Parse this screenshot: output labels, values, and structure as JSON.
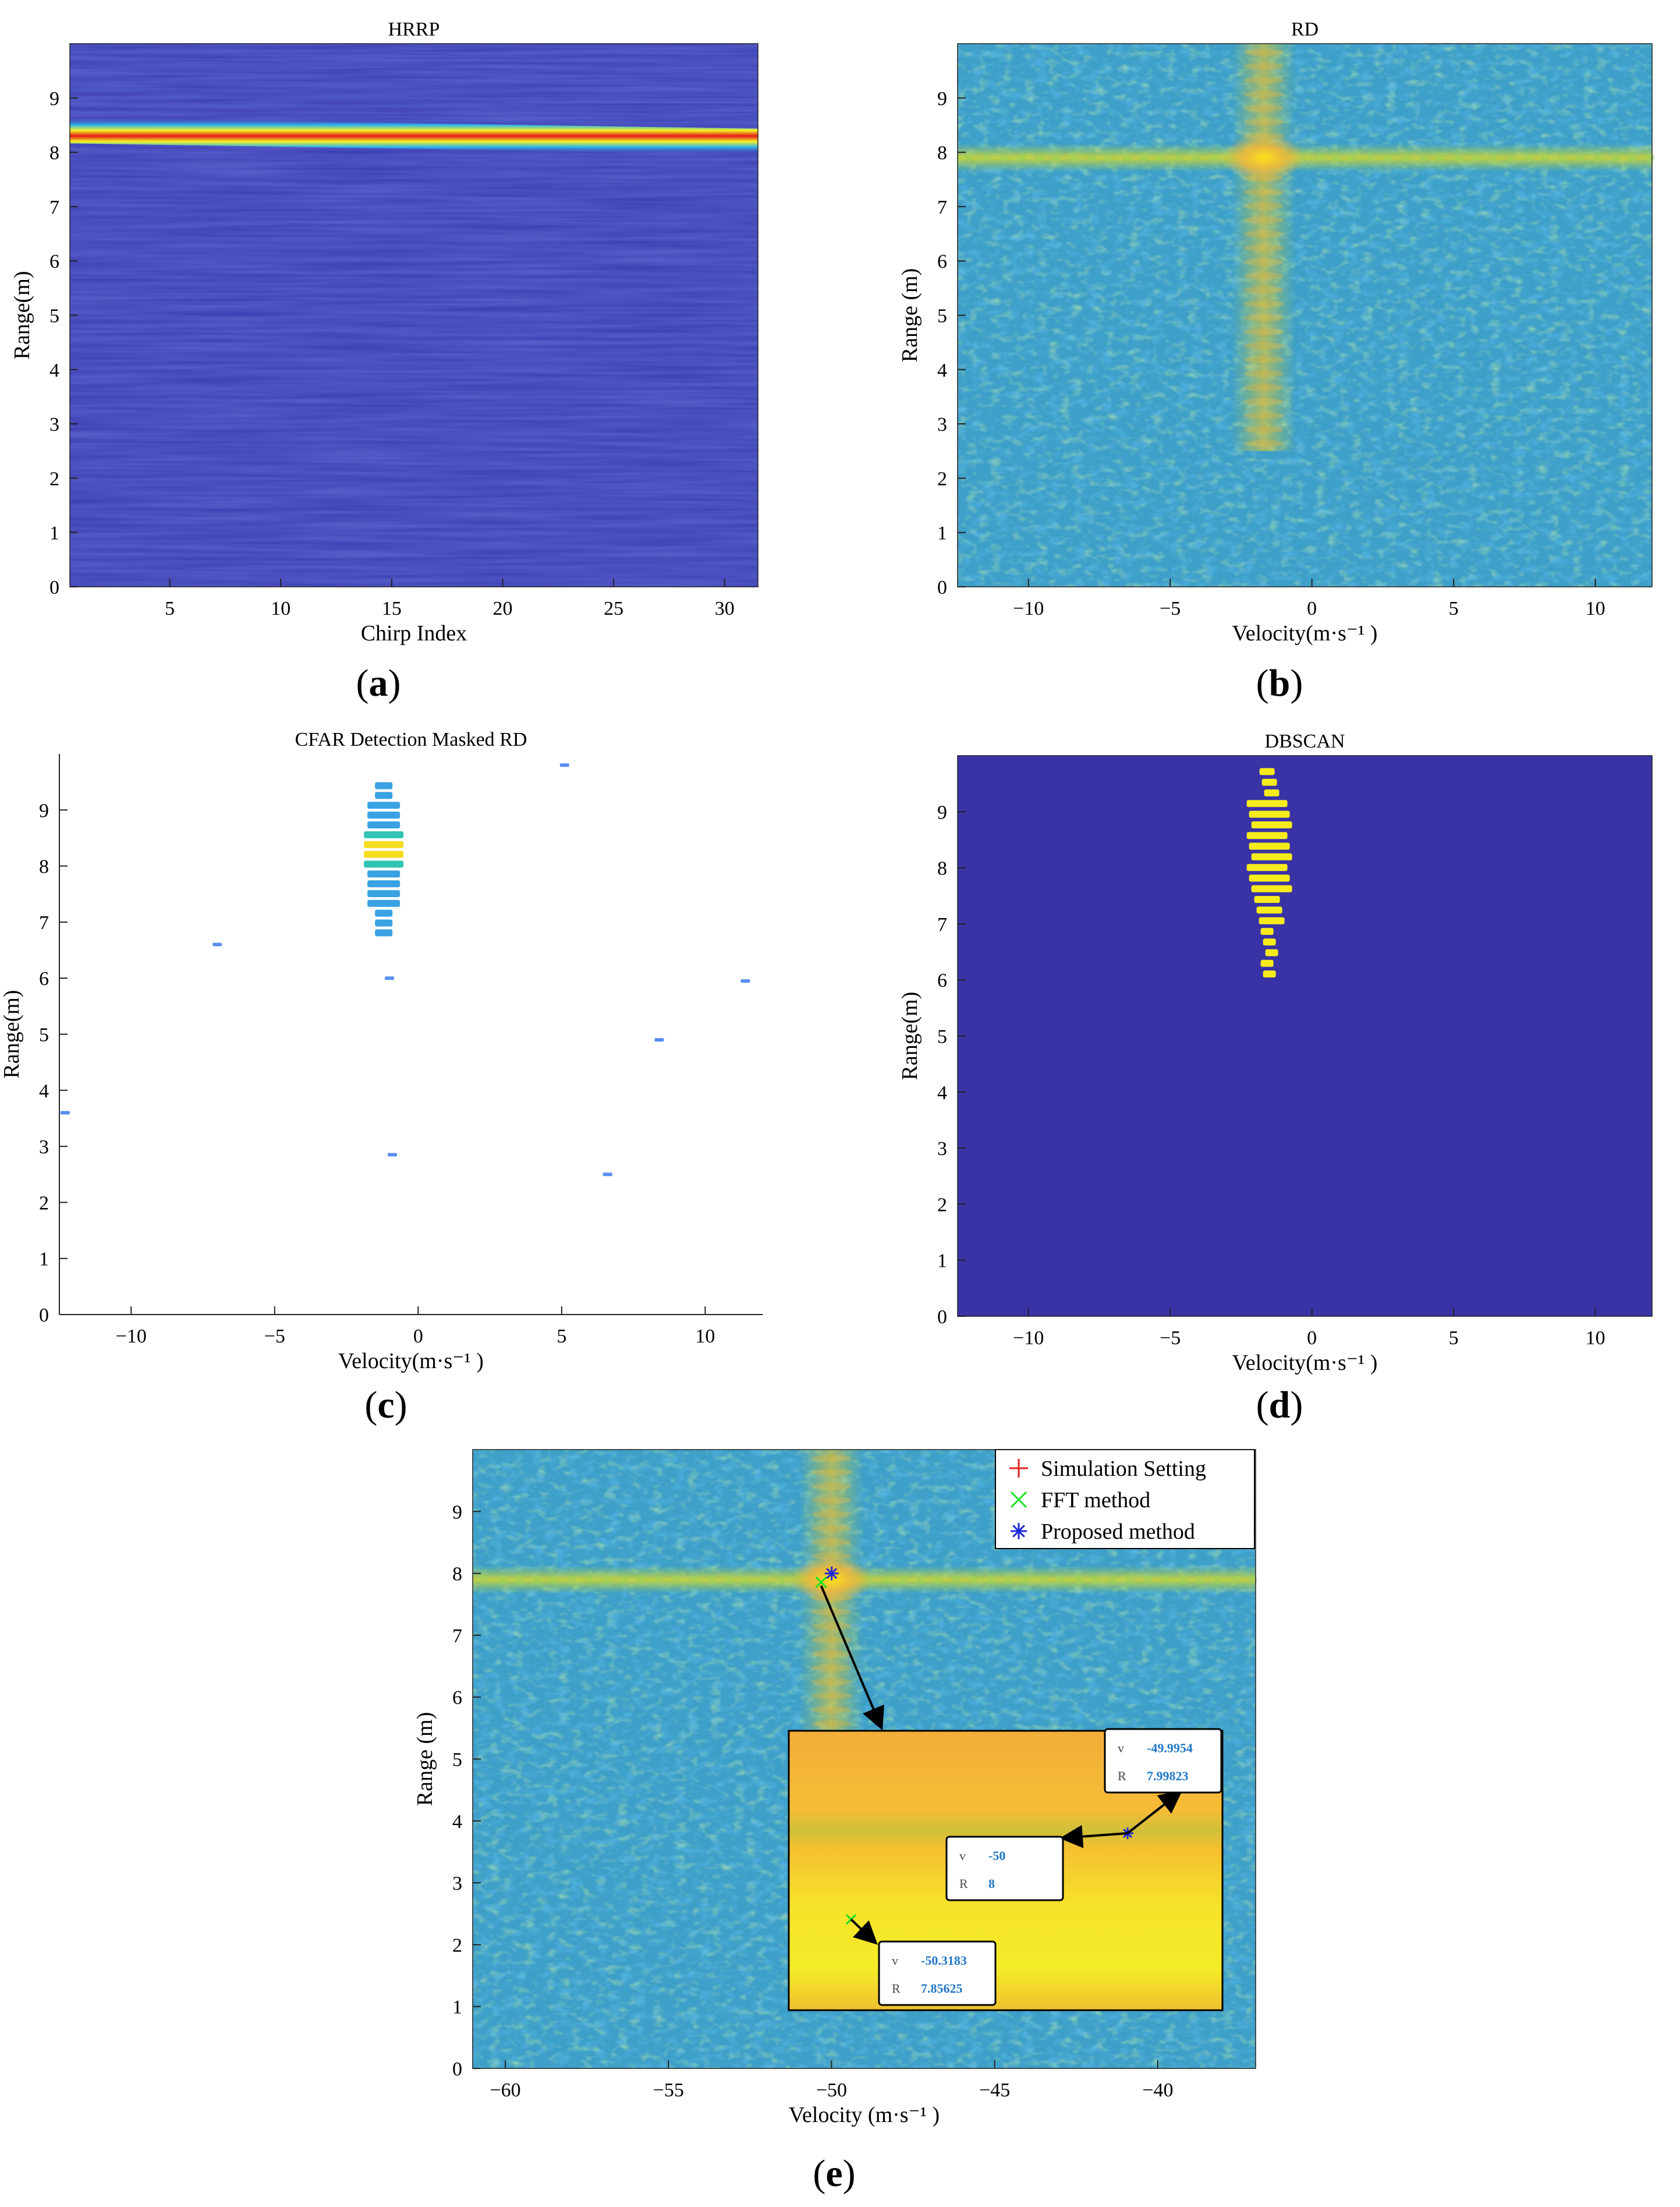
{
  "figure": {
    "panels": [
      {
        "id": "a",
        "caption_letter": "a",
        "title": "HRRP",
        "xlabel": "Chirp Index",
        "ylabel": "Range(m)"
      },
      {
        "id": "b",
        "caption_letter": "b",
        "title": "RD",
        "xlabel": "Velocity(m·s⁻¹ )",
        "ylabel": "Range (m)"
      },
      {
        "id": "c",
        "caption_letter": "c",
        "title": "CFAR Detection Masked RD",
        "xlabel": "Velocity(m·s⁻¹ )",
        "ylabel": "Range(m)"
      },
      {
        "id": "d",
        "caption_letter": "d",
        "title": "DBSCAN",
        "xlabel": "Velocity(m·s⁻¹ )",
        "ylabel": "Range(m)"
      },
      {
        "id": "e",
        "caption_letter": "e",
        "title": "",
        "xlabel": "Velocity (m·s⁻¹ )",
        "ylabel": "Range (m)"
      }
    ],
    "colors": {
      "parula_bg": "#3e9fc8",
      "dark_blue": "#3a33a6",
      "hrrp_bg": "#3a3cb2",
      "yellow": "#f6ec1c",
      "orange": "#f7b236"
    }
  },
  "chart_data": [
    {
      "id": "a",
      "type": "heatmap",
      "title": "HRRP",
      "xlabel": "Chirp Index",
      "ylabel": "Range(m)",
      "xlim": [
        0.5,
        31.5
      ],
      "ylim": [
        0,
        10
      ],
      "xticks": [
        5,
        10,
        15,
        20,
        25,
        30
      ],
      "xtick_labels": [
        "5",
        "10",
        "15",
        "20",
        "25",
        "30"
      ],
      "yticks": [
        0,
        1,
        2,
        3,
        4,
        5,
        6,
        7,
        8,
        9
      ],
      "ytick_labels": [
        "0",
        "1",
        "2",
        "3",
        "4",
        "5",
        "6",
        "7",
        "8",
        "9"
      ],
      "features": [
        {
          "kind": "range_line",
          "range_start": 8.4,
          "range_end": 8.2,
          "description": "strong target return"
        }
      ]
    },
    {
      "id": "b",
      "type": "heatmap",
      "title": "RD",
      "xlabel": "Velocity(m·s⁻¹ )",
      "ylabel": "Range (m)",
      "xlim": [
        -12.5,
        12
      ],
      "ylim": [
        0,
        10
      ],
      "xticks": [
        -10,
        -5,
        0,
        5,
        10
      ],
      "xtick_labels": [
        "−10",
        "−5",
        "0",
        "5",
        "10"
      ],
      "yticks": [
        0,
        1,
        2,
        3,
        4,
        5,
        6,
        7,
        8,
        9
      ],
      "ytick_labels": [
        "0",
        "1",
        "2",
        "3",
        "4",
        "5",
        "6",
        "7",
        "8",
        "9"
      ],
      "peak": {
        "velocity": -1.7,
        "range": 7.9
      }
    },
    {
      "id": "c",
      "type": "heatmap",
      "title": "CFAR Detection Masked RD",
      "xlabel": "Velocity(m·s⁻¹ )",
      "ylabel": "Range(m)",
      "xlim": [
        -12.5,
        12
      ],
      "ylim": [
        0,
        10
      ],
      "xticks": [
        -10,
        -5,
        0,
        5,
        10
      ],
      "xtick_labels": [
        "−10",
        "−5",
        "0",
        "5",
        "10"
      ],
      "yticks": [
        0,
        1,
        2,
        3,
        4,
        5,
        6,
        7,
        8,
        9
      ],
      "ytick_labels": [
        "0",
        "1",
        "2",
        "3",
        "4",
        "5",
        "6",
        "7",
        "8",
        "9"
      ],
      "detections": [
        {
          "velocity": -1.2,
          "range_min": 6.7,
          "range_max": 9.5
        }
      ]
    },
    {
      "id": "d",
      "type": "heatmap",
      "title": "DBSCAN",
      "xlabel": "Velocity(m·s⁻¹ )",
      "ylabel": "Range(m)",
      "xlim": [
        -12.5,
        12
      ],
      "ylim": [
        0,
        10
      ],
      "xticks": [
        -10,
        -5,
        0,
        5,
        10
      ],
      "xtick_labels": [
        "−10",
        "−5",
        "0",
        "5",
        "10"
      ],
      "yticks": [
        0,
        1,
        2,
        3,
        4,
        5,
        6,
        7,
        8,
        9
      ],
      "ytick_labels": [
        "0",
        "1",
        "2",
        "3",
        "4",
        "5",
        "6",
        "7",
        "8",
        "9"
      ],
      "cluster": {
        "velocity": -1.5,
        "range_min": 6.0,
        "range_max": 9.8
      }
    },
    {
      "id": "e",
      "type": "heatmap",
      "title": "",
      "xlabel": "Velocity (m·s⁻¹ )",
      "ylabel": "Range (m)",
      "xlim": [
        -61,
        -37
      ],
      "ylim": [
        0,
        10
      ],
      "xticks": [
        -60,
        -55,
        -50,
        -45,
        -40
      ],
      "xtick_labels": [
        "−60",
        "−55",
        "−50",
        "−45",
        "−40"
      ],
      "yticks": [
        0,
        1,
        2,
        3,
        4,
        5,
        6,
        7,
        8,
        9
      ],
      "ytick_labels": [
        "0",
        "1",
        "2",
        "3",
        "4",
        "5",
        "6",
        "7",
        "8",
        "9"
      ],
      "legend": {
        "location": "top-right",
        "entries": [
          {
            "label": "Simulation Setting",
            "marker": "+",
            "color": "#e8201c"
          },
          {
            "label": "FFT method",
            "marker": "x",
            "color": "#19e11f"
          },
          {
            "label": "Proposed method",
            "marker": "*",
            "color": "#1f28d8"
          }
        ]
      },
      "markers": [
        {
          "series": "Simulation Setting",
          "velocity": -50,
          "range": 8
        },
        {
          "series": "FFT method",
          "velocity": -50.3183,
          "range": 7.85625
        },
        {
          "series": "Proposed method",
          "velocity": -49.9954,
          "range": 7.99823
        }
      ],
      "datatips": [
        {
          "series": "Proposed method",
          "v_label": "v",
          "v": "-49.9954",
          "r_label": "R",
          "r": "7.99823"
        },
        {
          "series": "Simulation Setting",
          "v_label": "v",
          "v": "-50",
          "r_label": "R",
          "r": "8"
        },
        {
          "series": "FFT method",
          "v_label": "v",
          "v": "-50.3183",
          "r_label": "R",
          "r": "7.85625"
        }
      ]
    }
  ]
}
